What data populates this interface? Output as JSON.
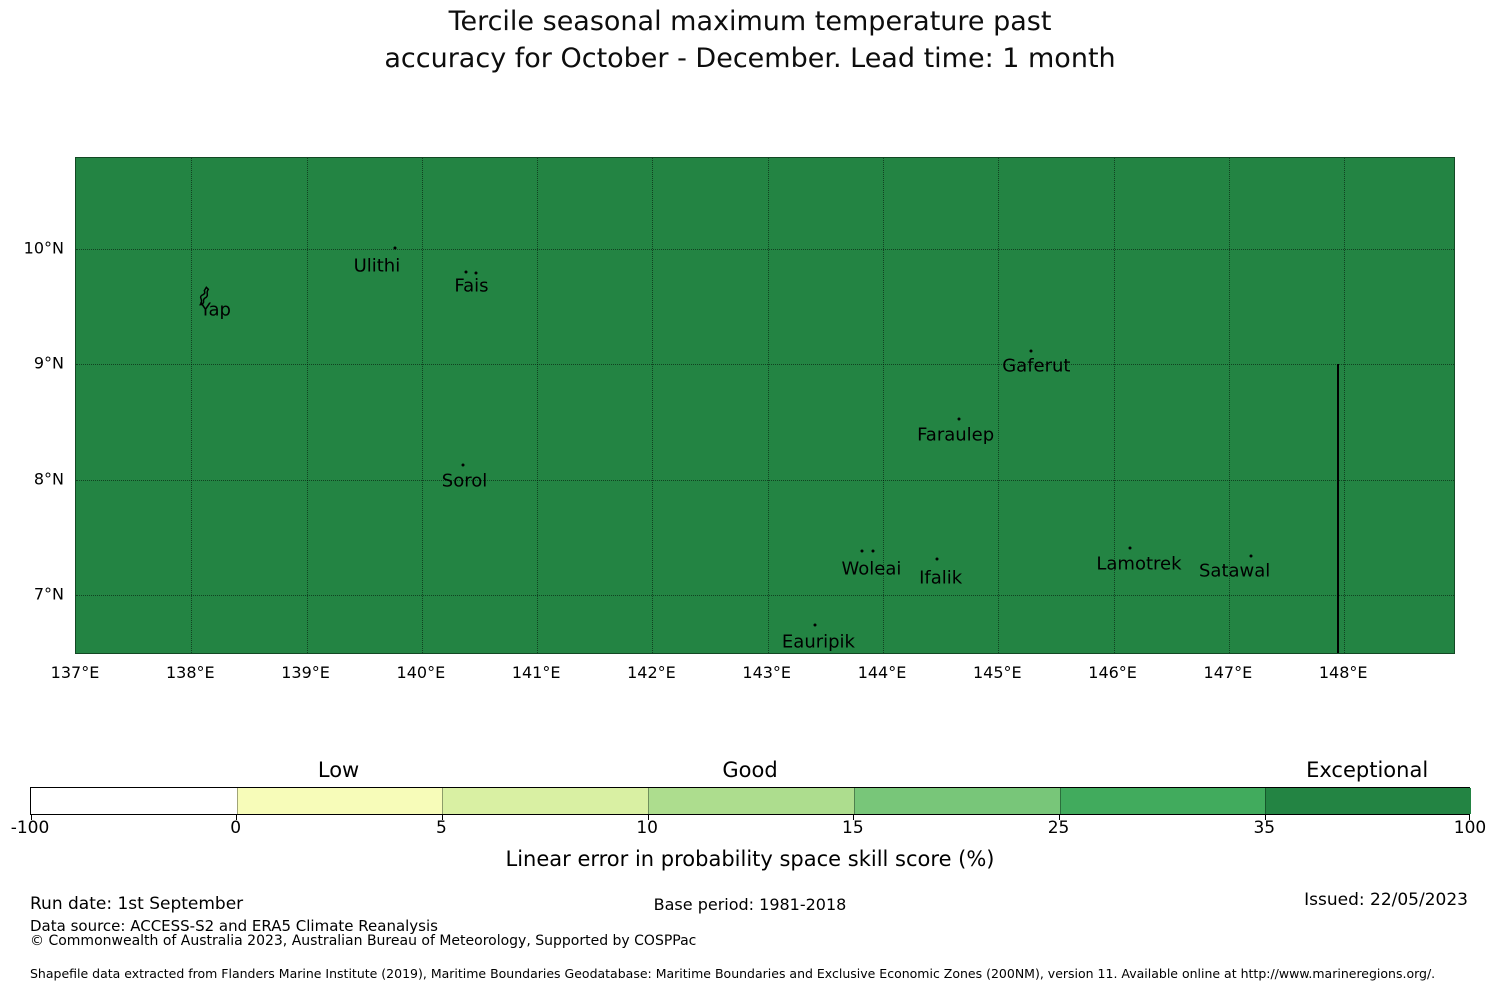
{
  "title": {
    "line1": "Tercile seasonal maximum temperature past",
    "line2": "accuracy for October - December. Lead time: 1 month"
  },
  "chart_data": {
    "type": "heatmap",
    "title": "Tercile seasonal maximum temperature past accuracy for October - December. Lead time: 1 month",
    "map": {
      "extent": {
        "lon_min": 137.0,
        "lon_max": 148.97,
        "lat_min": 6.48,
        "lat_max": 10.79
      },
      "fill_color": "#238443",
      "fill_category": "Exceptional",
      "grid": true,
      "x_ticks": [
        {
          "lon": 137,
          "label": "137°E"
        },
        {
          "lon": 138,
          "label": "138°E"
        },
        {
          "lon": 139,
          "label": "139°E"
        },
        {
          "lon": 140,
          "label": "140°E"
        },
        {
          "lon": 141,
          "label": "141°E"
        },
        {
          "lon": 142,
          "label": "142°E"
        },
        {
          "lon": 143,
          "label": "143°E"
        },
        {
          "lon": 144,
          "label": "144°E"
        },
        {
          "lon": 145,
          "label": "145°E"
        },
        {
          "lon": 146,
          "label": "146°E"
        },
        {
          "lon": 147,
          "label": "147°E"
        },
        {
          "lon": 148,
          "label": "148°E"
        }
      ],
      "y_ticks": [
        {
          "lat": 10,
          "label": "10°N"
        },
        {
          "lat": 9,
          "label": "9°N"
        },
        {
          "lat": 8,
          "label": "8°N"
        },
        {
          "lat": 7,
          "label": "7°N"
        }
      ],
      "islands": [
        {
          "name": "Yap",
          "shape": "island",
          "dots": [
            [
              138.1,
              9.585
            ]
          ],
          "label": [
            138.21,
            9.47
          ]
        },
        {
          "name": "Ulithi",
          "dots": [
            [
              139.77,
              10.01
            ]
          ],
          "label": [
            139.61,
            9.85
          ]
        },
        {
          "name": "Fais",
          "dots": [
            [
              140.38,
              9.8
            ],
            [
              140.47,
              9.79
            ]
          ],
          "label": [
            140.43,
            9.68
          ]
        },
        {
          "name": "Sorol",
          "dots": [
            [
              140.36,
              8.13
            ]
          ],
          "label": [
            140.37,
            7.99
          ]
        },
        {
          "name": "Gaferut",
          "dots": [
            [
              145.28,
              9.12
            ]
          ],
          "label": [
            145.33,
            8.99
          ]
        },
        {
          "name": "Faraulep",
          "dots": [
            [
              144.66,
              8.53
            ]
          ],
          "label": [
            144.63,
            8.39
          ]
        },
        {
          "name": "Woleai",
          "dots": [
            [
              143.82,
              7.38
            ],
            [
              143.91,
              7.38
            ]
          ],
          "label": [
            143.9,
            7.23
          ]
        },
        {
          "name": "Ifalik",
          "dots": [
            [
              144.47,
              7.31
            ]
          ],
          "label": [
            144.5,
            7.15
          ]
        },
        {
          "name": "Eauripik",
          "dots": [
            [
              143.41,
              6.74
            ]
          ],
          "label": [
            143.44,
            6.59
          ]
        },
        {
          "name": "Lamotrek",
          "dots": [
            [
              146.14,
              7.41
            ]
          ],
          "label": [
            146.22,
            7.27
          ]
        },
        {
          "name": "Satawal",
          "dots": [
            [
              147.19,
              7.34
            ]
          ],
          "label": [
            147.05,
            7.21
          ]
        }
      ],
      "eez_boundary": {
        "lon": 147.95,
        "lat_top": 9.0,
        "lat_bottom": 6.48
      }
    },
    "colorbar": {
      "boundaries": [
        -100,
        0,
        5,
        10,
        15,
        25,
        35,
        100
      ],
      "tick_labels": [
        "-100",
        "0",
        "5",
        "10",
        "15",
        "25",
        "35",
        "100"
      ],
      "colors": [
        "#ffffff",
        "#f7fcb9",
        "#d9f0a3",
        "#addd8e",
        "#78c679",
        "#41ab5d",
        "#238443"
      ],
      "categories": [
        {
          "label": "Low",
          "segment_center": 1.5
        },
        {
          "label": "Good",
          "segment_center": 3.5
        },
        {
          "label": "Exceptional",
          "segment_center": 6.5
        }
      ],
      "axis_label": "Linear error in probability space skill score (%)"
    }
  },
  "footer": {
    "run_date": "Run date: 1st September",
    "data_source": "Data source: ACCESS-S2 and ERA5 Climate Reanalysis",
    "copyright": "© Commonwealth of Australia 2023, Australian Bureau of Meteorology, Supported by COSPPac",
    "base_period": "Base period: 1981-2018",
    "issued": "Issued: 22/05/2023",
    "shapefile_note": "Shapefile data extracted from Flanders Marine Institute (2019), Maritime Boundaries Geodatabase: Maritime Boundaries and Exclusive Economic Zones (200NM), version 11. Available online at http://www.marineregions.org/."
  }
}
